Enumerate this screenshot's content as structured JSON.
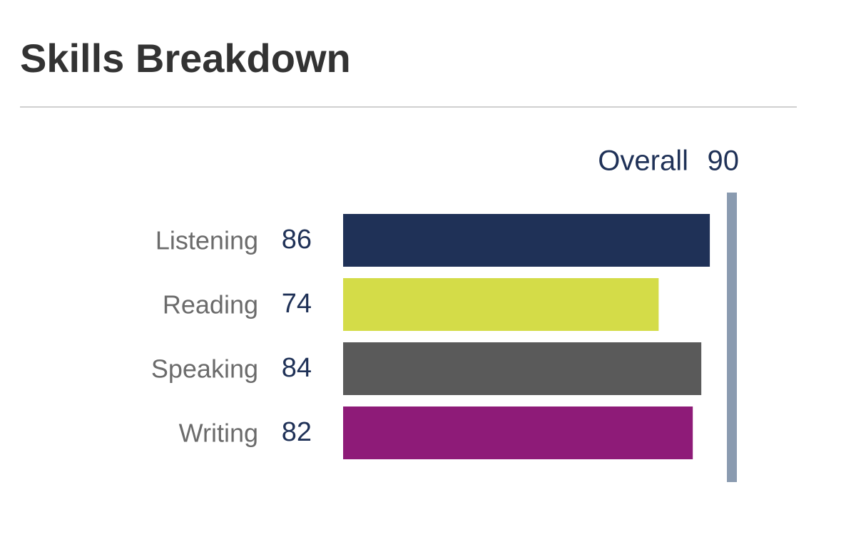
{
  "chart_data": {
    "type": "bar",
    "orientation": "horizontal",
    "title": "Skills Breakdown",
    "overall_label": "Overall",
    "overall": 90,
    "categories": [
      "Listening",
      "Reading",
      "Speaking",
      "Writing"
    ],
    "values": [
      86,
      74,
      84,
      82
    ],
    "colors": [
      "#1f3157",
      "#d4dc48",
      "#5a5a5a",
      "#8e1b78"
    ],
    "overall_color": "#8a9bb0"
  }
}
